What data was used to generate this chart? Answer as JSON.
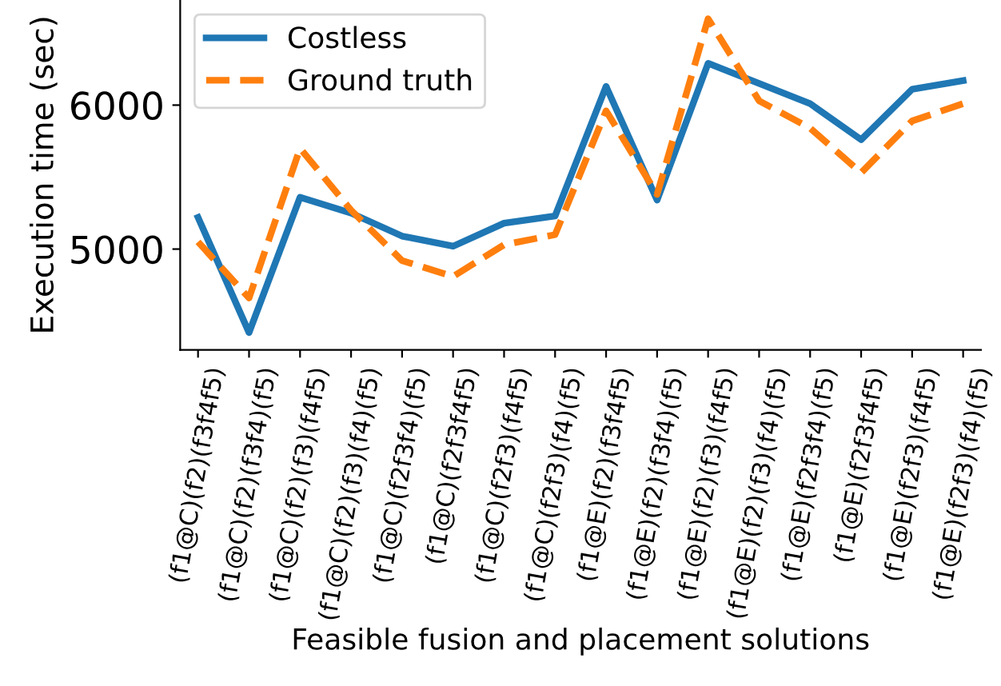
{
  "chart_data": {
    "type": "line",
    "xlabel": "Feasible fusion and placement solutions",
    "ylabel": "Execution time (sec)",
    "categories": [
      "(f1@C)(f2)(f3f4f5)",
      "(f1@C)(f2)(f3f4)(f5)",
      "(f1@C)(f2)(f3)(f4f5)",
      "(f1@C)(f2)(f3)(f4)(f5)",
      "(f1@C)(f2f3f4)(f5)",
      "(f1@C)(f2f3f4f5)",
      "(f1@C)(f2f3)(f4f5)",
      "(f1@C)(f2f3)(f4)(f5)",
      "(f1@E)(f2)(f3f4f5)",
      "(f1@E)(f2)(f3f4)(f5)",
      "(f1@E)(f2)(f3)(f4f5)",
      "(f1@E)(f2)(f3)(f4)(f5)",
      "(f1@E)(f2f3f4)(f5)",
      "(f1@E)(f2f3f4f5)",
      "(f1@E)(f2f3)(f4f5)",
      "(f1@E)(f2f3)(f4)(f5)"
    ],
    "series": [
      {
        "name": "Costless",
        "color": "#1f77b4",
        "line_style": "solid",
        "values": [
          5220,
          4420,
          5360,
          5250,
          5090,
          5020,
          5180,
          5230,
          6130,
          5340,
          6290,
          6150,
          6010,
          5760,
          6110,
          6170
        ]
      },
      {
        "name": "Ground truth",
        "color": "#ff7f0e",
        "line_style": "dashed",
        "values": [
          5050,
          4660,
          5700,
          5270,
          4920,
          4810,
          5030,
          5100,
          5960,
          5380,
          6600,
          6030,
          5840,
          5530,
          5890,
          6010
        ]
      }
    ],
    "ylim": [
      4300,
      6730
    ],
    "yticks": [
      5000,
      6000
    ],
    "grid": false,
    "legend": "top left",
    "marker": "none"
  }
}
